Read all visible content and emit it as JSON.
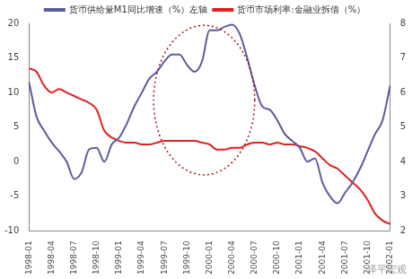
{
  "chart_data": {
    "type": "line",
    "categories": [
      "1998-01",
      null,
      null,
      "1998-04",
      null,
      null,
      "1998-07",
      null,
      null,
      "1998-10",
      null,
      null,
      "1999-01",
      null,
      null,
      "1999-04",
      null,
      null,
      "1999-07",
      null,
      null,
      "1999-10",
      null,
      null,
      "2000-01",
      null,
      null,
      "2000-04",
      null,
      null,
      "2000-07",
      null,
      null,
      "2000-10",
      null,
      null,
      "2001-01",
      null,
      null,
      "2001-04",
      null,
      null,
      "2001-07",
      null,
      null,
      "2001-10",
      null,
      null,
      "2002-01"
    ],
    "series": [
      {
        "name": "货币供给量M1同比增速（%）左轴",
        "color": "#5b5b9b",
        "axis": "y",
        "values": [
          11.5,
          6.5,
          4.5,
          2.8,
          1.5,
          0,
          -2.5,
          -1.5,
          1.8,
          2,
          0,
          2.5,
          3.5,
          5.5,
          8,
          10,
          12,
          13,
          14.5,
          15.5,
          15.5,
          14,
          13,
          14.5,
          19,
          19,
          19.5,
          19.8,
          18.5,
          15,
          11,
          8,
          7.5,
          6,
          4,
          3,
          2,
          0,
          0.5,
          -3,
          -5,
          -6,
          -4.5,
          -3,
          -1,
          1.5,
          4,
          6,
          11
        ]
      },
      {
        "name": "货币市场利率:金融业拆借（%）",
        "color": "#e02020",
        "axis": "y2",
        "values": [
          6.7,
          6.6,
          6.2,
          6.0,
          6.1,
          6.0,
          5.9,
          5.8,
          5.7,
          5.5,
          4.9,
          4.7,
          4.6,
          4.55,
          4.55,
          4.5,
          4.5,
          4.55,
          4.6,
          4.6,
          4.6,
          4.6,
          4.6,
          4.55,
          4.5,
          4.35,
          4.35,
          4.4,
          4.4,
          4.5,
          4.55,
          4.55,
          4.5,
          4.55,
          4.5,
          4.5,
          4.45,
          4.4,
          4.3,
          4.1,
          3.9,
          3.8,
          3.6,
          3.4,
          3.2,
          2.9,
          2.5,
          2.3,
          2.2
        ]
      }
    ],
    "ylim": [
      -10,
      20
    ],
    "yticks": [
      -10,
      -5,
      0,
      5,
      10,
      15,
      20
    ],
    "y2lim": [
      2,
      8
    ],
    "y2ticks": [
      2,
      3,
      4,
      5,
      6,
      7,
      8
    ],
    "grid": false,
    "legend": "top",
    "annotations": [
      "泽平宏观"
    ]
  }
}
